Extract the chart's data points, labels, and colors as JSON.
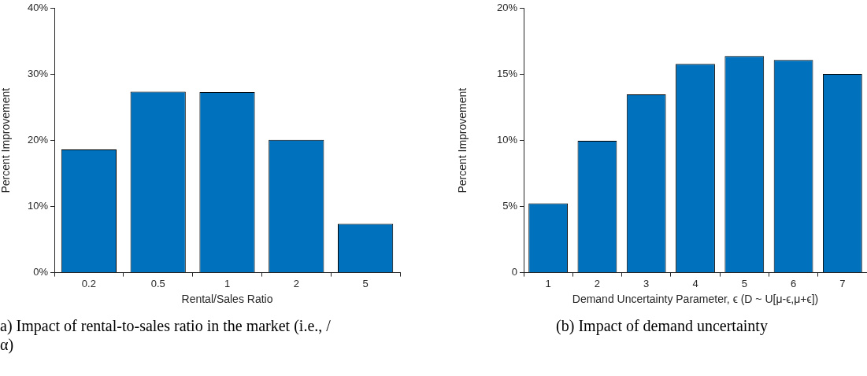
{
  "chart_data": [
    {
      "type": "bar",
      "categories": [
        "0.2",
        "0.5",
        "1",
        "2",
        "5"
      ],
      "values": [
        18.65,
        27.4,
        27.35,
        20.1,
        7.4
      ],
      "color": "#0072bd",
      "xlabel": "Rental/Sales Ratio",
      "ylabel": "Percent Improvement",
      "ylim": [
        0,
        40
      ],
      "yticks": [
        {
          "value": 0,
          "label": "0%"
        },
        {
          "value": 10,
          "label": "10%"
        },
        {
          "value": 20,
          "label": "20%"
        },
        {
          "value": 30,
          "label": "30%"
        },
        {
          "value": 40,
          "label": "40%"
        }
      ],
      "legend": false,
      "annotations": [
        "a) Impact of rental-to-sales ratio in the market (i.e., /α)"
      ]
    },
    {
      "type": "bar",
      "categories": [
        "1",
        "2",
        "3",
        "4",
        "5",
        "6",
        "7"
      ],
      "values": [
        5.25,
        9.98,
        13.5,
        15.8,
        16.4,
        16.1,
        15.04
      ],
      "color": "#0072bd",
      "xlabel": "Demand Uncertainty Parameter, ϵ (D ~ U[μ-ϵ,μ+ϵ])",
      "ylabel": "Percent Improvement",
      "ylim": [
        0,
        20
      ],
      "yticks": [
        0,
        {
          "value": 5,
          "label": "5%"
        },
        {
          "value": 10,
          "label": "10%"
        },
        {
          "value": 15,
          "label": "15%"
        },
        {
          "value": 20,
          "label": "20%"
        }
      ],
      "legend": false,
      "annotations": [
        "(b) Impact of demand uncertainty"
      ]
    }
  ]
}
